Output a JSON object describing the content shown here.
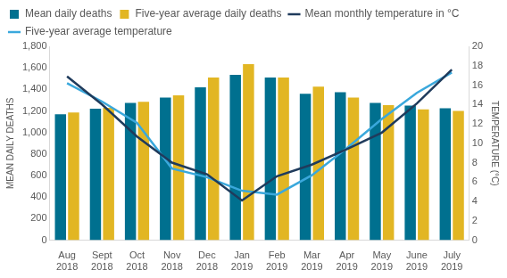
{
  "chart_data": {
    "type": "bar",
    "categories": [
      "Aug 2018",
      "Sept 2018",
      "Oct 2018",
      "Nov 2018",
      "Dec 2018",
      "Jan 2019",
      "Feb 2019",
      "Mar 2019",
      "Apr 2019",
      "May 2019",
      "June 2019",
      "July 2019"
    ],
    "series": [
      {
        "name": "Mean daily deaths",
        "type": "bar",
        "color": "#00708f",
        "values": [
          1170,
          1220,
          1275,
          1325,
          1420,
          1535,
          1510,
          1360,
          1375,
          1275,
          1250,
          1225
        ]
      },
      {
        "name": "Five-year average daily deaths",
        "type": "bar",
        "color": "#e2b623",
        "values": [
          1185,
          1230,
          1285,
          1345,
          1510,
          1635,
          1510,
          1425,
          1325,
          1255,
          1215,
          1200
        ]
      },
      {
        "name": "Mean monthly temperature in °C",
        "type": "line",
        "axis": "y2",
        "color": "#1f3b5c",
        "line_style": "solid",
        "values": [
          16.9,
          14.0,
          10.7,
          8.0,
          6.8,
          4.1,
          6.6,
          7.8,
          9.4,
          11.1,
          14.1,
          17.6
        ]
      },
      {
        "name": "Five-year average temperature",
        "type": "line",
        "axis": "y2",
        "color": "#3aa8dc",
        "line_style": "solid",
        "values": [
          16.2,
          14.3,
          12.1,
          7.4,
          6.5,
          5.1,
          4.7,
          6.7,
          9.5,
          12.5,
          15.2,
          17.3
        ]
      }
    ],
    "y_label": "MEAN DAILY DEATHS",
    "y2_label": "TEMPERATURE (°C)",
    "ylim": [
      0,
      1800
    ],
    "yticks": [
      0,
      200,
      400,
      600,
      800,
      {
        "value": 1000,
        "label": "1,000"
      },
      {
        "value": 1200,
        "label": "1,200"
      },
      {
        "value": 1400,
        "label": "1,400"
      },
      {
        "value": 1600,
        "label": "1,600"
      },
      {
        "value": 1800,
        "label": "1,800"
      }
    ],
    "y2lim": [
      0,
      20
    ],
    "y2ticks": [
      0,
      2,
      4,
      6,
      8,
      10,
      12,
      14,
      16,
      18,
      20
    ],
    "grid": false,
    "legend": "top"
  }
}
